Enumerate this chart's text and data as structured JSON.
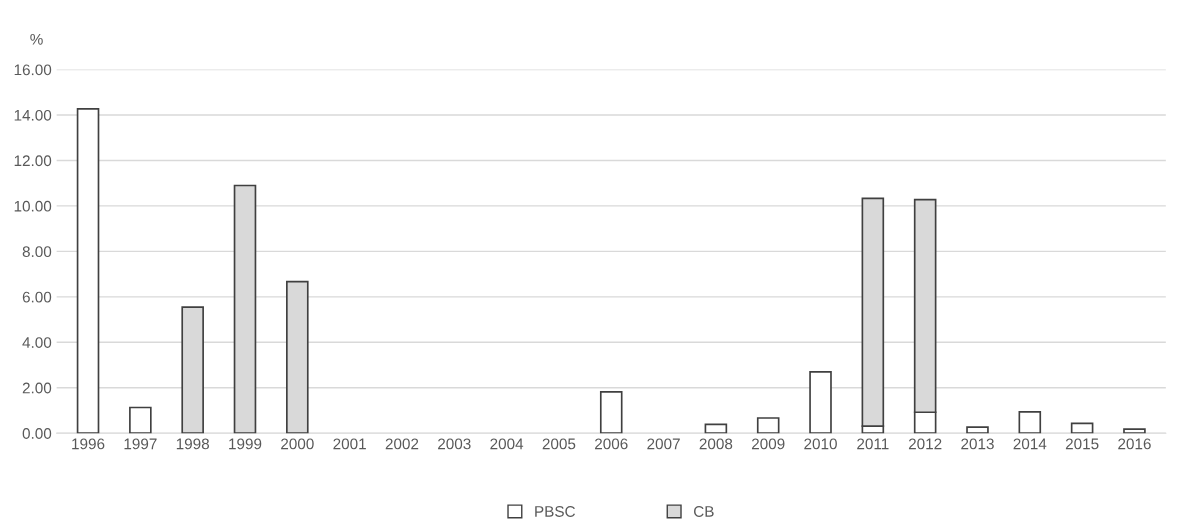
{
  "chart_data": {
    "type": "bar",
    "stacked": true,
    "ylabel": "%",
    "categories": [
      "1996",
      "1997",
      "1998",
      "1999",
      "2000",
      "2001",
      "2002",
      "2003",
      "2004",
      "2005",
      "2006",
      "2007",
      "2008",
      "2009",
      "2010",
      "2011",
      "2012",
      "2013",
      "2014",
      "2015",
      "2016"
    ],
    "series": [
      {
        "name": "PBSC",
        "color": "#ffffff",
        "values": [
          14.27,
          1.13,
          null,
          null,
          null,
          null,
          null,
          null,
          null,
          null,
          1.82,
          null,
          0.39,
          0.67,
          2.7,
          0.31,
          0.92,
          0.27,
          0.94,
          0.43,
          0.18
        ]
      },
      {
        "name": "CB",
        "color": "#d9d9d9",
        "values": [
          null,
          null,
          5.55,
          10.9,
          6.67,
          null,
          null,
          null,
          null,
          null,
          null,
          null,
          null,
          null,
          null,
          10.02,
          9.36,
          null,
          null,
          null,
          null
        ]
      }
    ],
    "ylim": [
      0,
      16
    ],
    "yticks": [
      {
        "value": 0,
        "label": "0.00"
      },
      {
        "value": 2,
        "label": "2.00"
      },
      {
        "value": 4,
        "label": "4.00"
      },
      {
        "value": 6,
        "label": "6.00"
      },
      {
        "value": 8,
        "label": "8.00"
      },
      {
        "value": 10,
        "label": "10.00"
      },
      {
        "value": 12,
        "label": "12.00"
      },
      {
        "value": 14,
        "label": "14.00"
      },
      {
        "value": 16,
        "label": "16.00"
      }
    ],
    "grid": "y",
    "legend": "bottom"
  }
}
